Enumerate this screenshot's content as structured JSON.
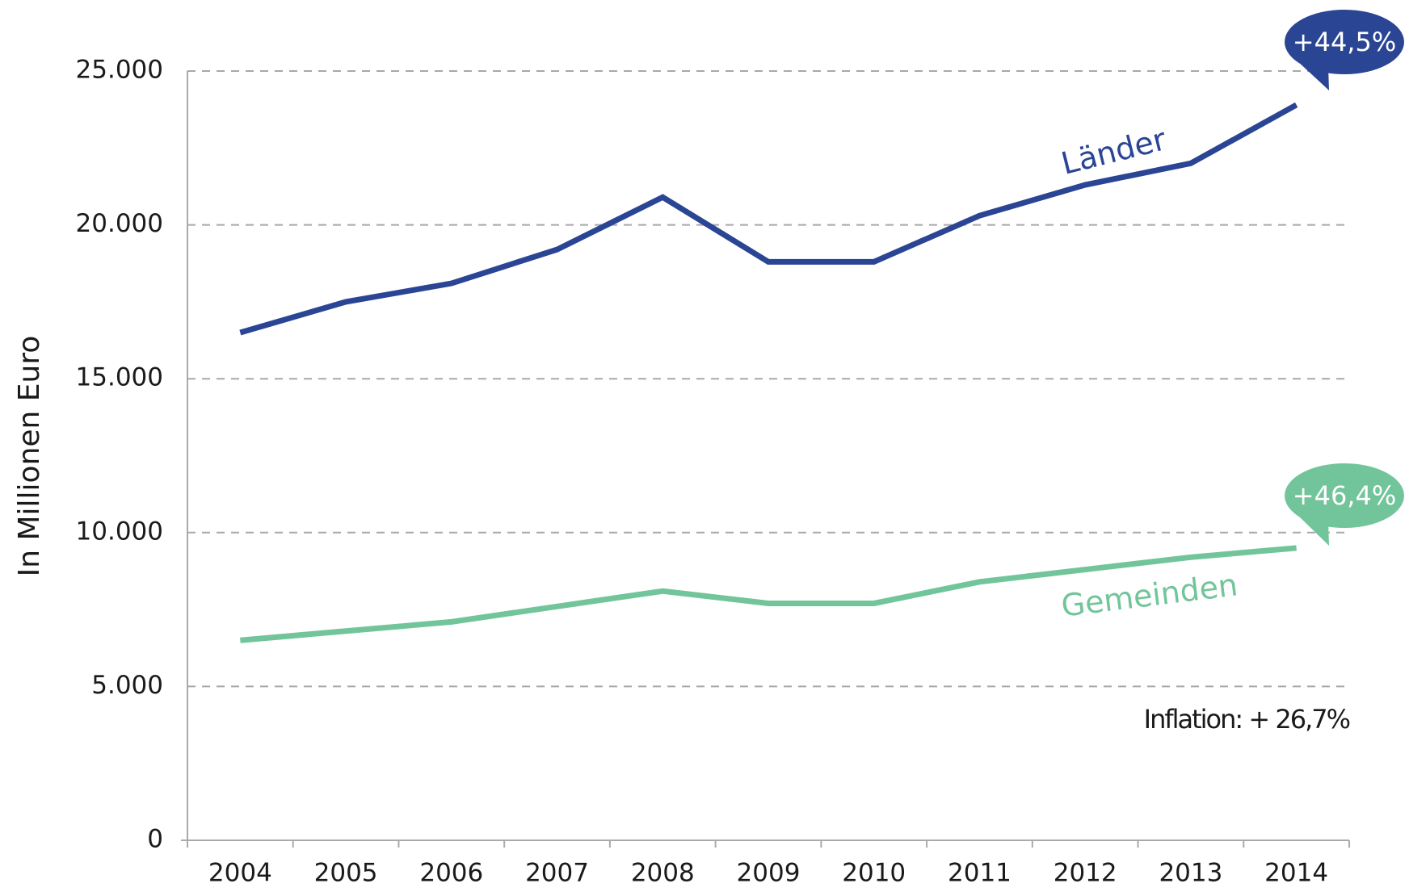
{
  "chart_data": {
    "type": "line",
    "y_label": "In Millionen Euro",
    "categories": [
      "2004",
      "2005",
      "2006",
      "2007",
      "2008",
      "2009",
      "2010",
      "2011",
      "2012",
      "2013",
      "2014"
    ],
    "series": [
      {
        "name": "Länder",
        "color": "#2b4595",
        "change_label": "+44,5%",
        "values": [
          16500,
          17500,
          18100,
          19200,
          20900,
          18800,
          18800,
          20300,
          21300,
          22000,
          23900
        ]
      },
      {
        "name": "Gemeinden",
        "color": "#72c59b",
        "change_label": "+46,4%",
        "values": [
          6500,
          6800,
          7100,
          7600,
          8100,
          7700,
          7700,
          8400,
          8800,
          9200,
          9500
        ]
      }
    ],
    "annotation": "Inflation: + 26,7%",
    "ylim": [
      0,
      25000
    ],
    "yticks": [
      0,
      {
        "value": 5000,
        "label": "5.000"
      },
      {
        "value": 10000,
        "label": "10.000"
      },
      {
        "value": 15000,
        "label": "15.000"
      },
      {
        "value": 20000,
        "label": "20.000"
      },
      {
        "value": 25000,
        "label": "25.000"
      }
    ],
    "grid": true
  }
}
